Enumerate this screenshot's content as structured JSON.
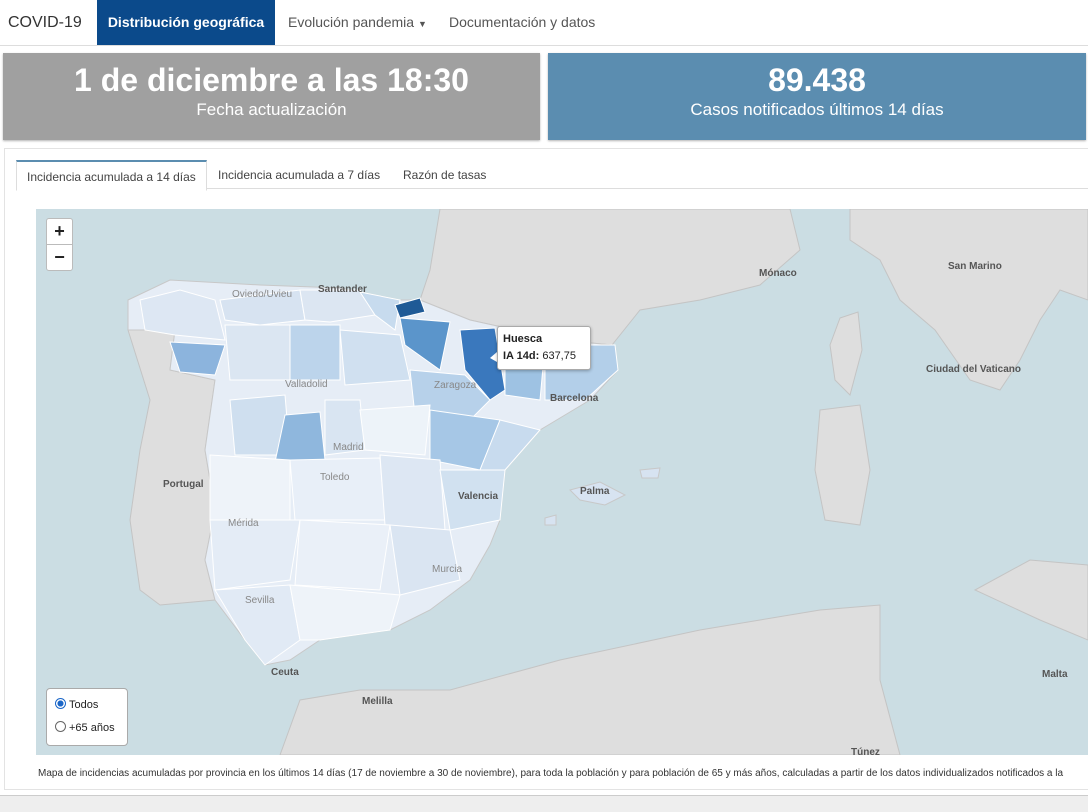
{
  "navbar": {
    "brand": "COVID-19",
    "items": [
      "Distribución geográfica",
      "Evolución pandemia",
      "Documentación y datos"
    ]
  },
  "info_boxes": [
    {
      "value": "1 de diciembre a las 18:30",
      "label": "Fecha actualización"
    },
    {
      "value": "89.438",
      "label": "Casos notificados últimos 14 días"
    }
  ],
  "tabs": [
    "Incidencia acumulada a 14 días",
    "Incidencia acumulada a 7 días",
    "Razón de tasas"
  ],
  "map": {
    "zoom_in": "+",
    "zoom_out": "−",
    "labels": [
      "Santander",
      "Portugal",
      "Barcelona",
      "Valencia",
      "Palma",
      "Ceuta",
      "Melilla",
      "Mónaco",
      "San Marino",
      "Ciudad del Vaticano",
      "Malta",
      "Túnez",
      "Zaragoza",
      "Madrid",
      "Valladolid",
      "Toledo",
      "Mérida",
      "Sevilla",
      "Murcia",
      "Oviedo/Uvieu"
    ],
    "tooltip": {
      "title": "Huesca",
      "metric": "IA 14d:",
      "value": "637,75"
    },
    "options": [
      "Todos",
      "+65 años"
    ]
  },
  "caption": "Mapa de incidencias acumuladas por provincia en los últimos 14 días (17 de noviembre a 30 de noviembre), para toda la población y para población de 65 y más años, calculadas a partir de los datos individualizados notificados a la"
}
